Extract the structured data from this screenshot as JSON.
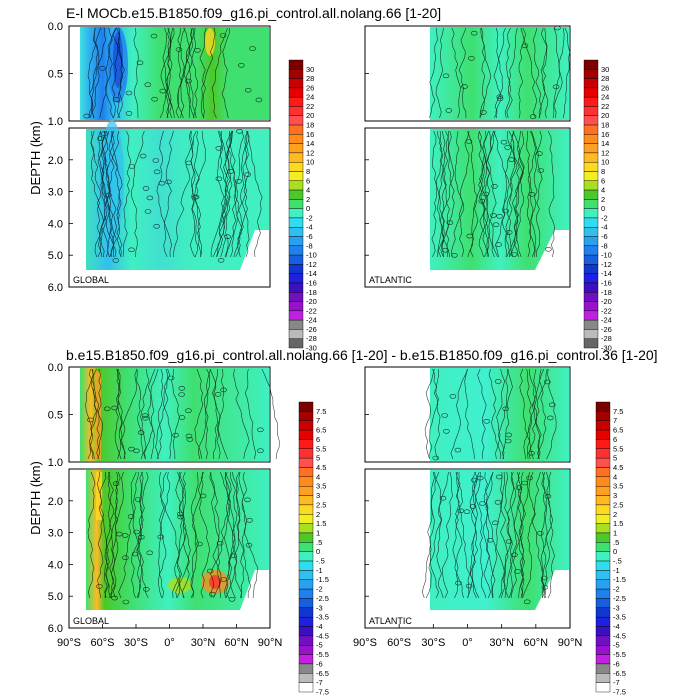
{
  "chart_data": [
    {
      "type": "heatmap",
      "title": "E-l MOCb.e15.B1850.f09_g16.pi_control.all.nolang.66 [1-20]",
      "ylabel": "DEPTH (km)",
      "panels": [
        {
          "label": "GLOBAL",
          "basin": "global"
        },
        {
          "label": "ATLANTIC",
          "basin": "atlantic"
        }
      ],
      "yticks_upper": [
        "0.0",
        "0.5",
        "1.0"
      ],
      "yticks_lower": [
        "2.0",
        "3.0",
        "4.0",
        "5.0",
        "6.0"
      ],
      "ylim_upper_km": [
        0,
        1
      ],
      "ylim_lower_km": [
        1,
        6
      ],
      "colorbar_labels": [
        "30",
        "28",
        "26",
        "24",
        "22",
        "20",
        "18",
        "16",
        "14",
        "12",
        "10",
        "8",
        "6",
        "4",
        "2",
        "0",
        "-2",
        "-4",
        "-6",
        "-8",
        "-10",
        "-12",
        "-14",
        "-16",
        "-18",
        "-20",
        "-22",
        "-24",
        "-26",
        "-28",
        "-30"
      ],
      "colorbar_colors": [
        "#7a0000",
        "#a30000",
        "#c80000",
        "#e60000",
        "#ff1a1a",
        "#ff3030",
        "#ff5050",
        "#ff7020",
        "#ff8c1a",
        "#ffa020",
        "#ffba22",
        "#ffd820",
        "#f2ee20",
        "#a6e020",
        "#4cc82a",
        "#3fe070",
        "#40f0c0",
        "#30dcf0",
        "#30c0f0",
        "#2aa0f0",
        "#1f80ee",
        "#1660e0",
        "#1038d0",
        "#2020e0",
        "#3a10c0",
        "#7010c0",
        "#9a10d0",
        "#c020e0",
        "#888888",
        "#bbbbbb",
        "#666666"
      ]
    },
    {
      "type": "heatmap",
      "title": "b.e15.B1850.f09_g16.pi_control.all.nolang.66 [1-20] - b.e15.B1850.f09_g16.pi_control.36 [1-20]",
      "ylabel": "DEPTH (km)",
      "panels": [
        {
          "label": "GLOBAL",
          "basin": "global"
        },
        {
          "label": "ATLANTIC",
          "basin": "atlantic"
        }
      ],
      "yticks_upper": [
        "0.0",
        "0.5",
        "1.0"
      ],
      "yticks_lower": [
        "2.0",
        "3.0",
        "4.0",
        "5.0",
        "6.0"
      ],
      "xticks": [
        "90°S",
        "60°S",
        "30°S",
        "0°",
        "30°N",
        "60°N",
        "90°N"
      ],
      "xlim_lat": [
        -90,
        90
      ],
      "colorbar_labels": [
        "7.5",
        "7",
        "6.5",
        "6",
        "5.5",
        "5",
        "4.5",
        "4",
        "3.5",
        "3",
        "2.5",
        "2",
        "1.5",
        "1",
        ".5",
        "0",
        "-.5",
        "-1",
        "-1.5",
        "-2",
        "-2.5",
        "-3",
        "-3.5",
        "-4",
        "-4.5",
        "-5",
        "-5.5",
        "-6",
        "-6.5",
        "-7",
        "-7.5"
      ],
      "colorbar_colors": [
        "#7a0000",
        "#a30000",
        "#c80000",
        "#e60000",
        "#ff1a1a",
        "#ff3030",
        "#ff5050",
        "#ff7020",
        "#ff8c1a",
        "#ffa020",
        "#ffba22",
        "#ffd820",
        "#f2ee20",
        "#a6e020",
        "#4cc82a",
        "#3fe070",
        "#40f0c0",
        "#30dcf0",
        "#30c0f0",
        "#2aa0f0",
        "#1f80ee",
        "#1660e0",
        "#1038d0",
        "#2020e0",
        "#3a10c0",
        "#7010c0",
        "#9a10d0",
        "#c020e0",
        "#888888",
        "#bbbbbb",
        "#ffffff"
      ]
    }
  ]
}
